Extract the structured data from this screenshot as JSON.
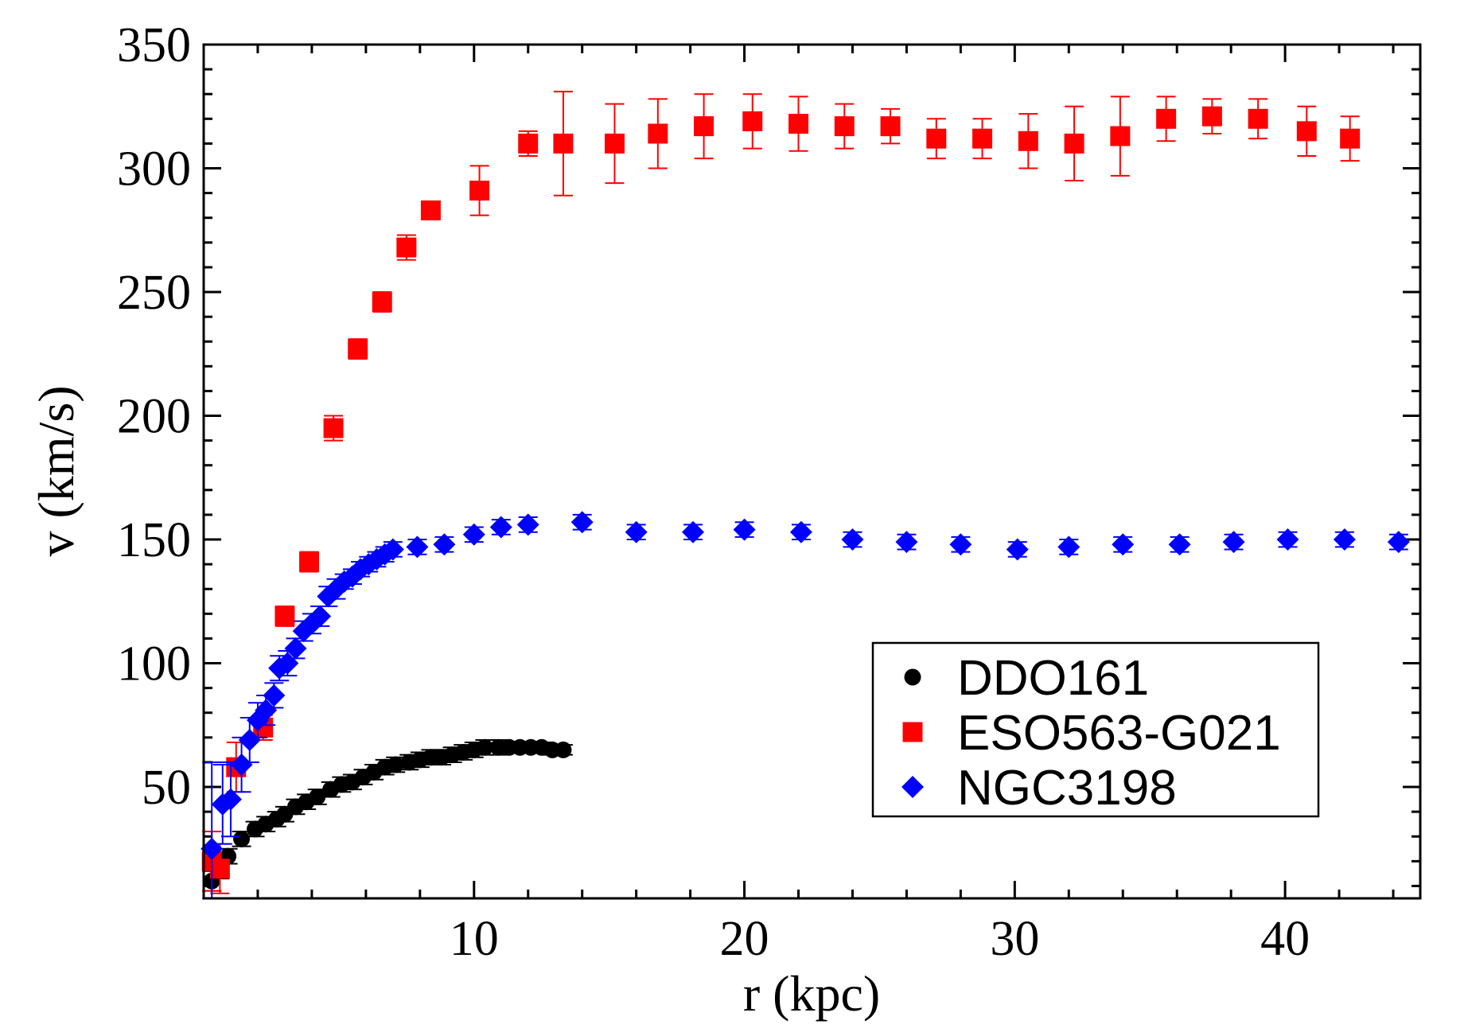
{
  "chart_data": {
    "type": "scatter",
    "title": "",
    "xlabel": "r (kpc)",
    "ylabel": "v (km/s)",
    "xlim": [
      0,
      45
    ],
    "ylim": [
      5,
      350
    ],
    "xticks": [
      10,
      20,
      30,
      40
    ],
    "yticks": [
      50,
      100,
      150,
      200,
      250,
      300,
      350
    ],
    "grid": false,
    "legend_position": "bottom-right",
    "series": [
      {
        "name": "DDO161",
        "color": "#000000",
        "marker": "circle",
        "points": [
          [
            0.3,
            12,
            4
          ],
          [
            0.6,
            17,
            4
          ],
          [
            0.9,
            22,
            3
          ],
          [
            1.4,
            29,
            3
          ],
          [
            1.9,
            33,
            3
          ],
          [
            2.3,
            35,
            3
          ],
          [
            2.7,
            37,
            3
          ],
          [
            3.0,
            39,
            3
          ],
          [
            3.4,
            42,
            3
          ],
          [
            3.8,
            44,
            3
          ],
          [
            4.2,
            46,
            3
          ],
          [
            4.7,
            49,
            3
          ],
          [
            5.1,
            51,
            3
          ],
          [
            5.5,
            52,
            3
          ],
          [
            5.9,
            54,
            3
          ],
          [
            6.3,
            56,
            3
          ],
          [
            6.7,
            58,
            3
          ],
          [
            7.1,
            59,
            3
          ],
          [
            7.6,
            60,
            3
          ],
          [
            8.0,
            61,
            3
          ],
          [
            8.4,
            62,
            3
          ],
          [
            8.8,
            62,
            3
          ],
          [
            9.2,
            63,
            3
          ],
          [
            9.6,
            64,
            3
          ],
          [
            10.0,
            65,
            3
          ],
          [
            10.4,
            66,
            3
          ],
          [
            10.9,
            66,
            3
          ],
          [
            11.3,
            66,
            2
          ],
          [
            11.7,
            66,
            2
          ],
          [
            12.1,
            66,
            2
          ],
          [
            12.5,
            66,
            2
          ],
          [
            12.9,
            65,
            2
          ],
          [
            13.3,
            65,
            2
          ]
        ]
      },
      {
        "name": "ESO563-G021",
        "color": "#ff0000",
        "marker": "square",
        "points": [
          [
            0.3,
            20,
            12
          ],
          [
            0.6,
            17,
            10
          ],
          [
            1.2,
            58,
            10
          ],
          [
            2.2,
            74,
            5
          ],
          [
            3.0,
            119,
            4
          ],
          [
            3.9,
            141,
            4
          ],
          [
            4.8,
            195,
            5
          ],
          [
            5.7,
            227,
            4
          ],
          [
            6.6,
            246,
            4
          ],
          [
            7.5,
            268,
            5
          ],
          [
            8.4,
            283,
            3
          ],
          [
            10.2,
            291,
            10
          ],
          [
            12.0,
            310,
            5
          ],
          [
            13.3,
            310,
            21
          ],
          [
            15.2,
            310,
            16
          ],
          [
            16.8,
            314,
            14
          ],
          [
            18.5,
            317,
            13
          ],
          [
            20.3,
            319,
            11
          ],
          [
            22.0,
            318,
            11
          ],
          [
            23.7,
            317,
            9
          ],
          [
            25.4,
            317,
            7
          ],
          [
            27.1,
            312,
            8
          ],
          [
            28.8,
            312,
            8
          ],
          [
            30.5,
            311,
            11
          ],
          [
            32.2,
            310,
            15
          ],
          [
            33.9,
            313,
            16
          ],
          [
            35.6,
            320,
            9
          ],
          [
            37.3,
            321,
            7
          ],
          [
            39.0,
            320,
            8
          ],
          [
            40.8,
            315,
            10
          ],
          [
            42.4,
            312,
            9
          ]
        ]
      },
      {
        "name": "NGC3198",
        "color": "#0000ff",
        "marker": "diamond",
        "points": [
          [
            0.3,
            25,
            35
          ],
          [
            0.7,
            43,
            16
          ],
          [
            1.0,
            45,
            15
          ],
          [
            1.4,
            59,
            11
          ],
          [
            1.7,
            69,
            9
          ],
          [
            2.0,
            77,
            7
          ],
          [
            2.3,
            81,
            6
          ],
          [
            2.6,
            87,
            5
          ],
          [
            2.8,
            98,
            5
          ],
          [
            3.1,
            100,
            5
          ],
          [
            3.4,
            106,
            4
          ],
          [
            3.7,
            113,
            4
          ],
          [
            4.0,
            116,
            4
          ],
          [
            4.3,
            119,
            4
          ],
          [
            4.6,
            127,
            4
          ],
          [
            4.9,
            130,
            4
          ],
          [
            5.2,
            133,
            3
          ],
          [
            5.5,
            135,
            3
          ],
          [
            5.8,
            138,
            3
          ],
          [
            6.1,
            140,
            3
          ],
          [
            6.4,
            142,
            3
          ],
          [
            6.7,
            144,
            3
          ],
          [
            7.0,
            146,
            3
          ],
          [
            7.9,
            147,
            3
          ],
          [
            8.9,
            148,
            3
          ],
          [
            10.0,
            152,
            3
          ],
          [
            11.0,
            155,
            3
          ],
          [
            12.0,
            156,
            3
          ],
          [
            14.0,
            157,
            3
          ],
          [
            16.0,
            153,
            3
          ],
          [
            18.1,
            153,
            3
          ],
          [
            20.0,
            154,
            3
          ],
          [
            22.1,
            153,
            3
          ],
          [
            24.0,
            150,
            3
          ],
          [
            26.0,
            149,
            3
          ],
          [
            28.0,
            148,
            3
          ],
          [
            30.1,
            146,
            3
          ],
          [
            32.0,
            147,
            3
          ],
          [
            34.0,
            148,
            3
          ],
          [
            36.1,
            148,
            3
          ],
          [
            38.1,
            149,
            3
          ],
          [
            40.1,
            150,
            3
          ],
          [
            42.2,
            150,
            3
          ],
          [
            44.2,
            149,
            3
          ]
        ]
      }
    ]
  }
}
